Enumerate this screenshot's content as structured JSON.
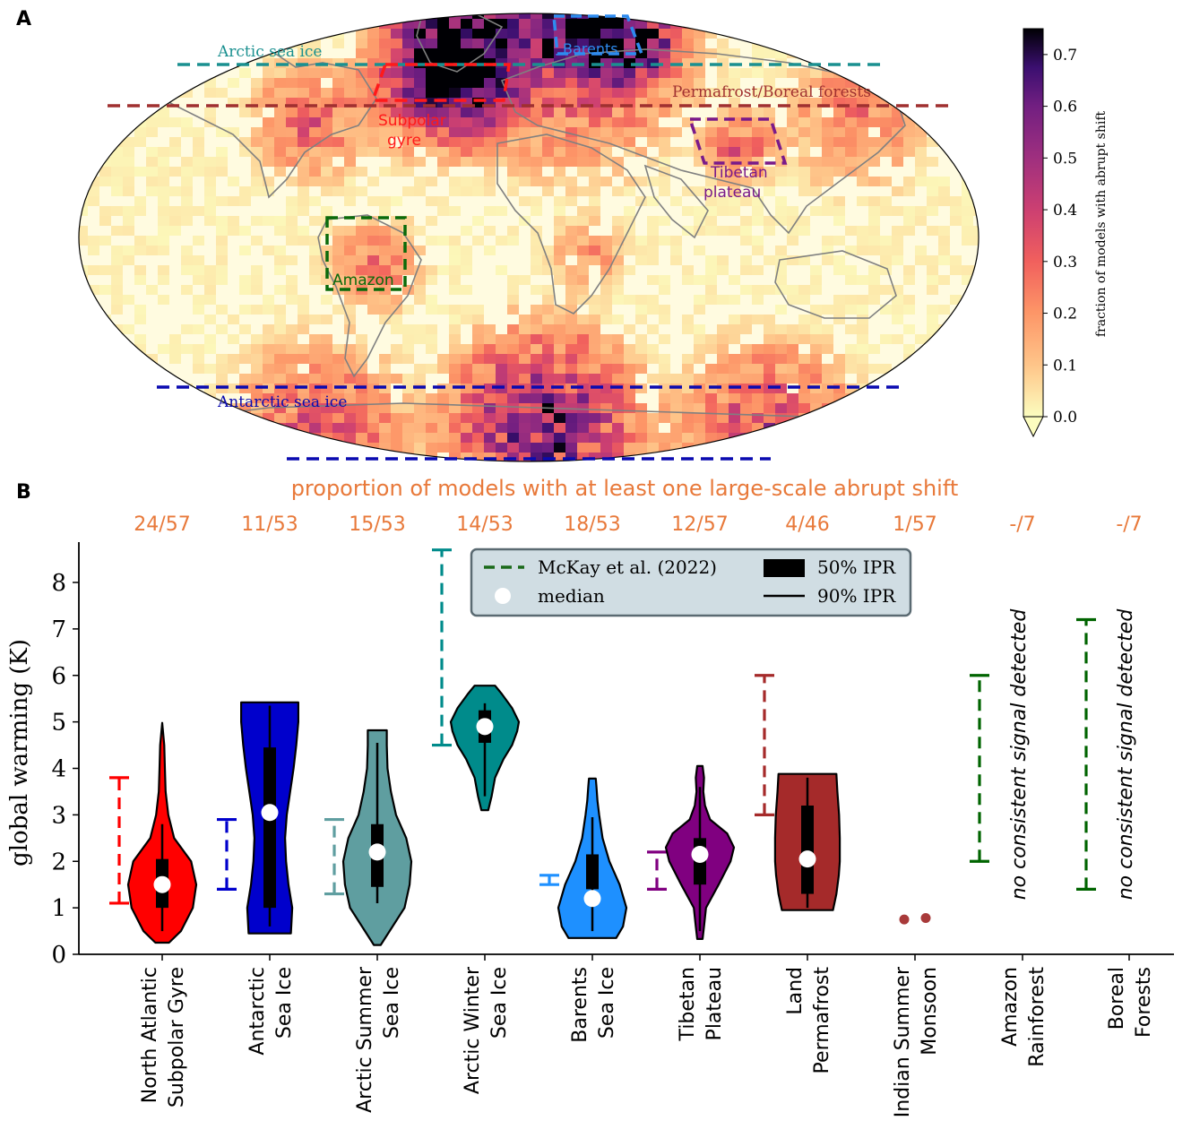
{
  "panel_a": {
    "label": "A",
    "colorbar": {
      "label": "fraction of models with abrupt shift",
      "ticks": [
        "0.0",
        "0.1",
        "0.2",
        "0.3",
        "0.4",
        "0.5",
        "0.6",
        "0.7"
      ],
      "range": [
        0,
        0.75
      ],
      "colormap": "magma_r"
    },
    "regions": [
      {
        "name": "Arctic sea ice",
        "color": "#1a9090",
        "style": "line"
      },
      {
        "name": "Barents",
        "color": "#2e8bef",
        "style": "box"
      },
      {
        "name": "Permafrost/Boreal forests",
        "color": "#a03030",
        "style": "line"
      },
      {
        "name": "Subpolar gyre",
        "color": "#ff1a1a",
        "style": "box"
      },
      {
        "name": "Tibetan plateau",
        "color": "#7a1a8a",
        "style": "box"
      },
      {
        "name": "Amazon",
        "color": "#0a6a0a",
        "style": "box"
      },
      {
        "name": "Antarctic sea ice",
        "color": "#0a0ab0",
        "style": "line"
      }
    ]
  },
  "panel_b": {
    "label": "B",
    "proportion_title": "proportion of models with at least one large-scale abrupt shift",
    "no_signal_text": "no consistent signal detected",
    "legend": {
      "mckay": "McKay et al. (2022)",
      "ipr50": "50% IPR",
      "median": "median",
      "ipr90": "90% IPR"
    }
  },
  "chart_data": {
    "type": "violin",
    "ylabel": "global warming (K)",
    "ylim": [
      0,
      8.8
    ],
    "yticks": [
      0,
      1,
      2,
      3,
      4,
      5,
      6,
      7,
      8
    ],
    "categories": [
      "North Atlantic\nSubpolar Gyre",
      "Antarctic\nSea Ice",
      "Arctic Summer\nSea Ice",
      "Arctic Winter\nSea Ice",
      "Barents\nSea Ice",
      "Tibetan\nPlateau",
      "Land\nPermafrost",
      "Indian Summer\nMonsoon",
      "Amazon\nRainforest",
      "Boreal\nForests"
    ],
    "proportions": [
      "24/57",
      "11/53",
      "15/53",
      "14/53",
      "18/53",
      "12/57",
      "4/46",
      "1/57",
      "-/7",
      "-/7"
    ],
    "colors": [
      "#ff0000",
      "#0000cc",
      "#5f9ea0",
      "#008b8b",
      "#1e90ff",
      "#800080",
      "#a52a2a",
      "#a52a2a",
      "#006400",
      "#006400"
    ],
    "mckay_ranges": [
      [
        1.1,
        3.8
      ],
      [
        1.4,
        2.9
      ],
      [
        1.3,
        2.9
      ],
      [
        4.5,
        8.7
      ],
      [
        1.5,
        1.7
      ],
      [
        1.4,
        2.2
      ],
      [
        3.0,
        6.0
      ],
      null,
      [
        2.0,
        6.0
      ],
      [
        1.4,
        7.2
      ]
    ],
    "medians": [
      1.5,
      3.05,
      2.2,
      4.9,
      1.2,
      2.15,
      2.05,
      null,
      null,
      null
    ],
    "ipr50": [
      [
        1.0,
        2.05
      ],
      [
        1.0,
        4.45
      ],
      [
        1.45,
        2.8
      ],
      [
        4.55,
        5.25
      ],
      [
        1.4,
        2.15
      ],
      [
        1.5,
        2.5
      ],
      [
        1.3,
        3.2
      ],
      null,
      null,
      null
    ],
    "ipr90": [
      [
        0.5,
        2.8
      ],
      [
        0.6,
        5.35
      ],
      [
        1.1,
        4.55
      ],
      [
        3.4,
        5.4
      ],
      [
        0.5,
        2.95
      ],
      [
        0.5,
        3.6
      ],
      [
        1.0,
        3.8
      ],
      null,
      null,
      null
    ],
    "violins": [
      {
        "y": [
          0.25,
          0.5,
          1.0,
          1.5,
          2.0,
          2.5,
          3.0,
          3.5,
          4.0,
          4.5,
          4.98
        ],
        "w": [
          0.2,
          0.55,
          0.9,
          1.0,
          0.85,
          0.35,
          0.18,
          0.1,
          0.08,
          0.06,
          0.0
        ]
      },
      {
        "y": [
          0.45,
          1.0,
          1.5,
          2.0,
          2.5,
          3.0,
          3.5,
          4.0,
          4.5,
          5.0,
          5.42
        ],
        "w": [
          0.62,
          0.66,
          0.55,
          0.48,
          0.45,
          0.5,
          0.6,
          0.7,
          0.78,
          0.84,
          0.84
        ]
      },
      {
        "y": [
          0.2,
          0.6,
          1.0,
          1.5,
          2.0,
          2.5,
          3.0,
          3.5,
          4.0,
          4.5,
          4.82
        ],
        "w": [
          0.1,
          0.45,
          0.8,
          0.95,
          1.0,
          0.85,
          0.55,
          0.4,
          0.3,
          0.28,
          0.28
        ]
      },
      {
        "y": [
          3.1,
          3.4,
          3.8,
          4.2,
          4.5,
          4.8,
          5.0,
          5.3,
          5.6,
          5.78
        ],
        "w": [
          0.1,
          0.2,
          0.3,
          0.55,
          0.8,
          0.95,
          1.0,
          0.8,
          0.5,
          0.3
        ]
      },
      {
        "y": [
          0.35,
          0.6,
          1.0,
          1.5,
          2.0,
          2.5,
          3.0,
          3.3,
          3.6,
          3.78
        ],
        "w": [
          0.7,
          0.9,
          1.0,
          0.8,
          0.5,
          0.3,
          0.2,
          0.15,
          0.12,
          0.1
        ]
      },
      {
        "y": [
          0.33,
          0.6,
          1.0,
          1.5,
          2.0,
          2.3,
          2.6,
          2.9,
          3.2,
          3.5,
          3.8,
          4.05
        ],
        "w": [
          0.08,
          0.12,
          0.18,
          0.55,
          0.9,
          1.0,
          0.8,
          0.3,
          0.15,
          0.1,
          0.12,
          0.08
        ]
      },
      {
        "y": [
          0.95,
          1.3,
          1.7,
          2.0,
          2.5,
          3.0,
          3.5,
          3.88
        ],
        "w": [
          0.75,
          0.85,
          0.92,
          0.95,
          0.95,
          0.93,
          0.88,
          0.85
        ]
      }
    ],
    "points": [
      [
        0.75,
        0.78
      ]
    ]
  }
}
